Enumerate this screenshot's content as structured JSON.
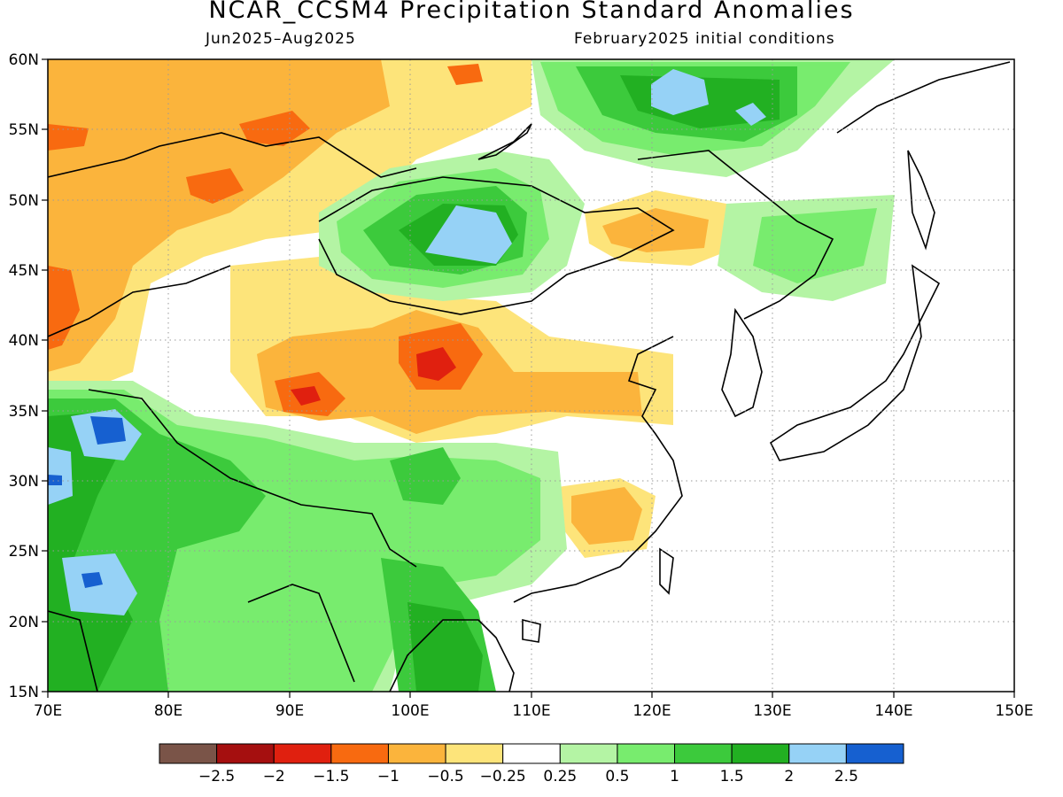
{
  "header": {
    "title": "NCAR_CCSM4 Precipitation Standard Anomalies",
    "period": "Jun2025–Aug2025",
    "init": "February2025 initial conditions"
  },
  "map": {
    "lon_range": [
      70,
      150
    ],
    "lat_range": [
      15,
      60
    ],
    "lon_ticks": [
      "70E",
      "80E",
      "90E",
      "100E",
      "110E",
      "120E",
      "130E",
      "140E",
      "150E"
    ],
    "lat_ticks": [
      "15N",
      "20N",
      "25N",
      "30N",
      "35N",
      "40N",
      "45N",
      "50N",
      "55N",
      "60N"
    ],
    "grid": true
  },
  "colorbar": {
    "colors": [
      "#7a5448",
      "#a50f0f",
      "#e0200f",
      "#f86a10",
      "#fbb43c",
      "#fde47a",
      "#ffffff",
      "#b4f4a4",
      "#78ec6e",
      "#3cca3c",
      "#22b022",
      "#96d2f6",
      "#1660d0"
    ],
    "labels": [
      "−2.5",
      "−2",
      "−1.5",
      "−1",
      "−0.5",
      "−0.25",
      "0.25",
      "0.5",
      "1",
      "1.5",
      "2",
      "2.5"
    ]
  },
  "palette": {
    "orange_light": "#fbb43c",
    "orange": "#f86a10",
    "red": "#e0200f",
    "darkred": "#a50f0f",
    "yellow": "#fde47a",
    "green_light": "#b4f4a4",
    "green": "#78ec6e",
    "green_mid": "#3cca3c",
    "green_dark": "#22b022",
    "blue_light": "#96d2f6",
    "blue": "#1660d0"
  }
}
